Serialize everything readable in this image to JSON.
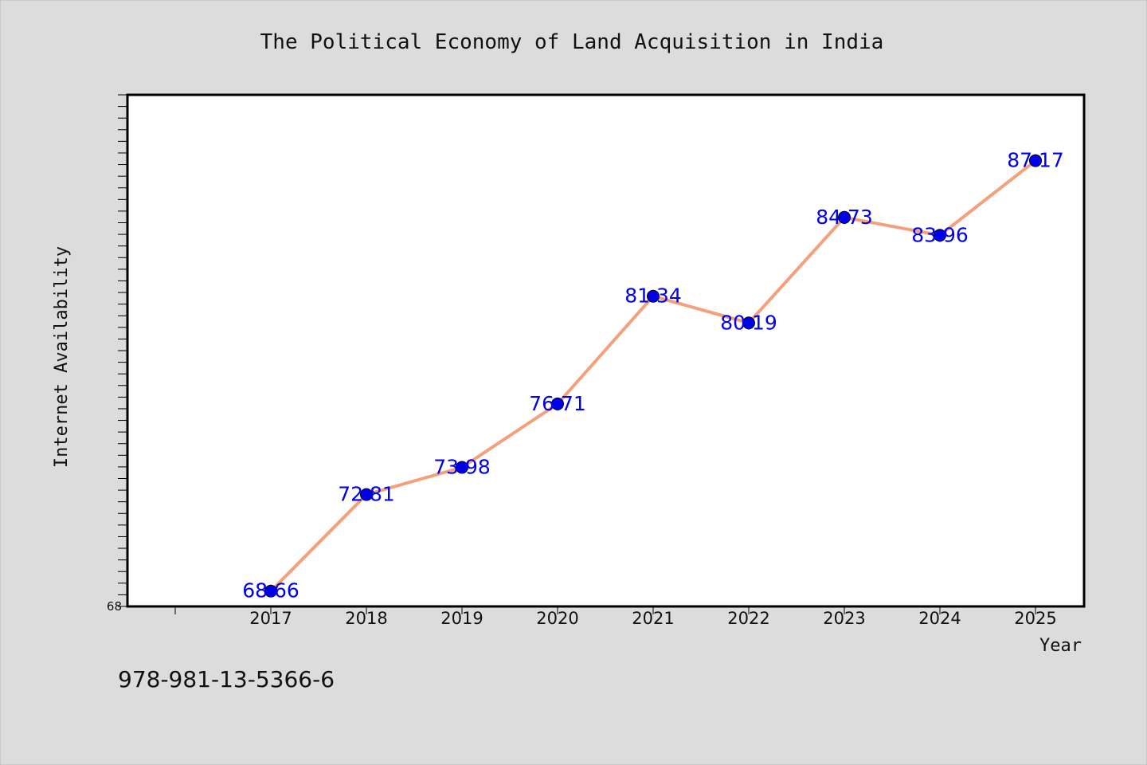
{
  "chart_data": {
    "type": "line",
    "title": "The Political Economy of Land Acquisition in India",
    "xlabel": "Year",
    "ylabel": "Internet Availability",
    "categories": [
      "2017",
      "2018",
      "2019",
      "2020",
      "2021",
      "2022",
      "2023",
      "2024",
      "2025"
    ],
    "values": [
      68.66,
      72.81,
      73.98,
      76.71,
      81.34,
      80.19,
      84.73,
      83.96,
      87.17
    ],
    "data_labels": [
      "68.66",
      "72.81",
      "73.98",
      "76.71",
      "81.34",
      "80.19",
      "84.73",
      "83.96",
      "87.17"
    ],
    "ylim": [
      68,
      90
    ],
    "ytick_labels": [
      "68"
    ],
    "grid": false,
    "line_color": "#f4a07c",
    "marker_color": "#0000ee",
    "label_color": "#0000ee"
  },
  "footer": {
    "isbn": "978-981-13-5366-6"
  }
}
